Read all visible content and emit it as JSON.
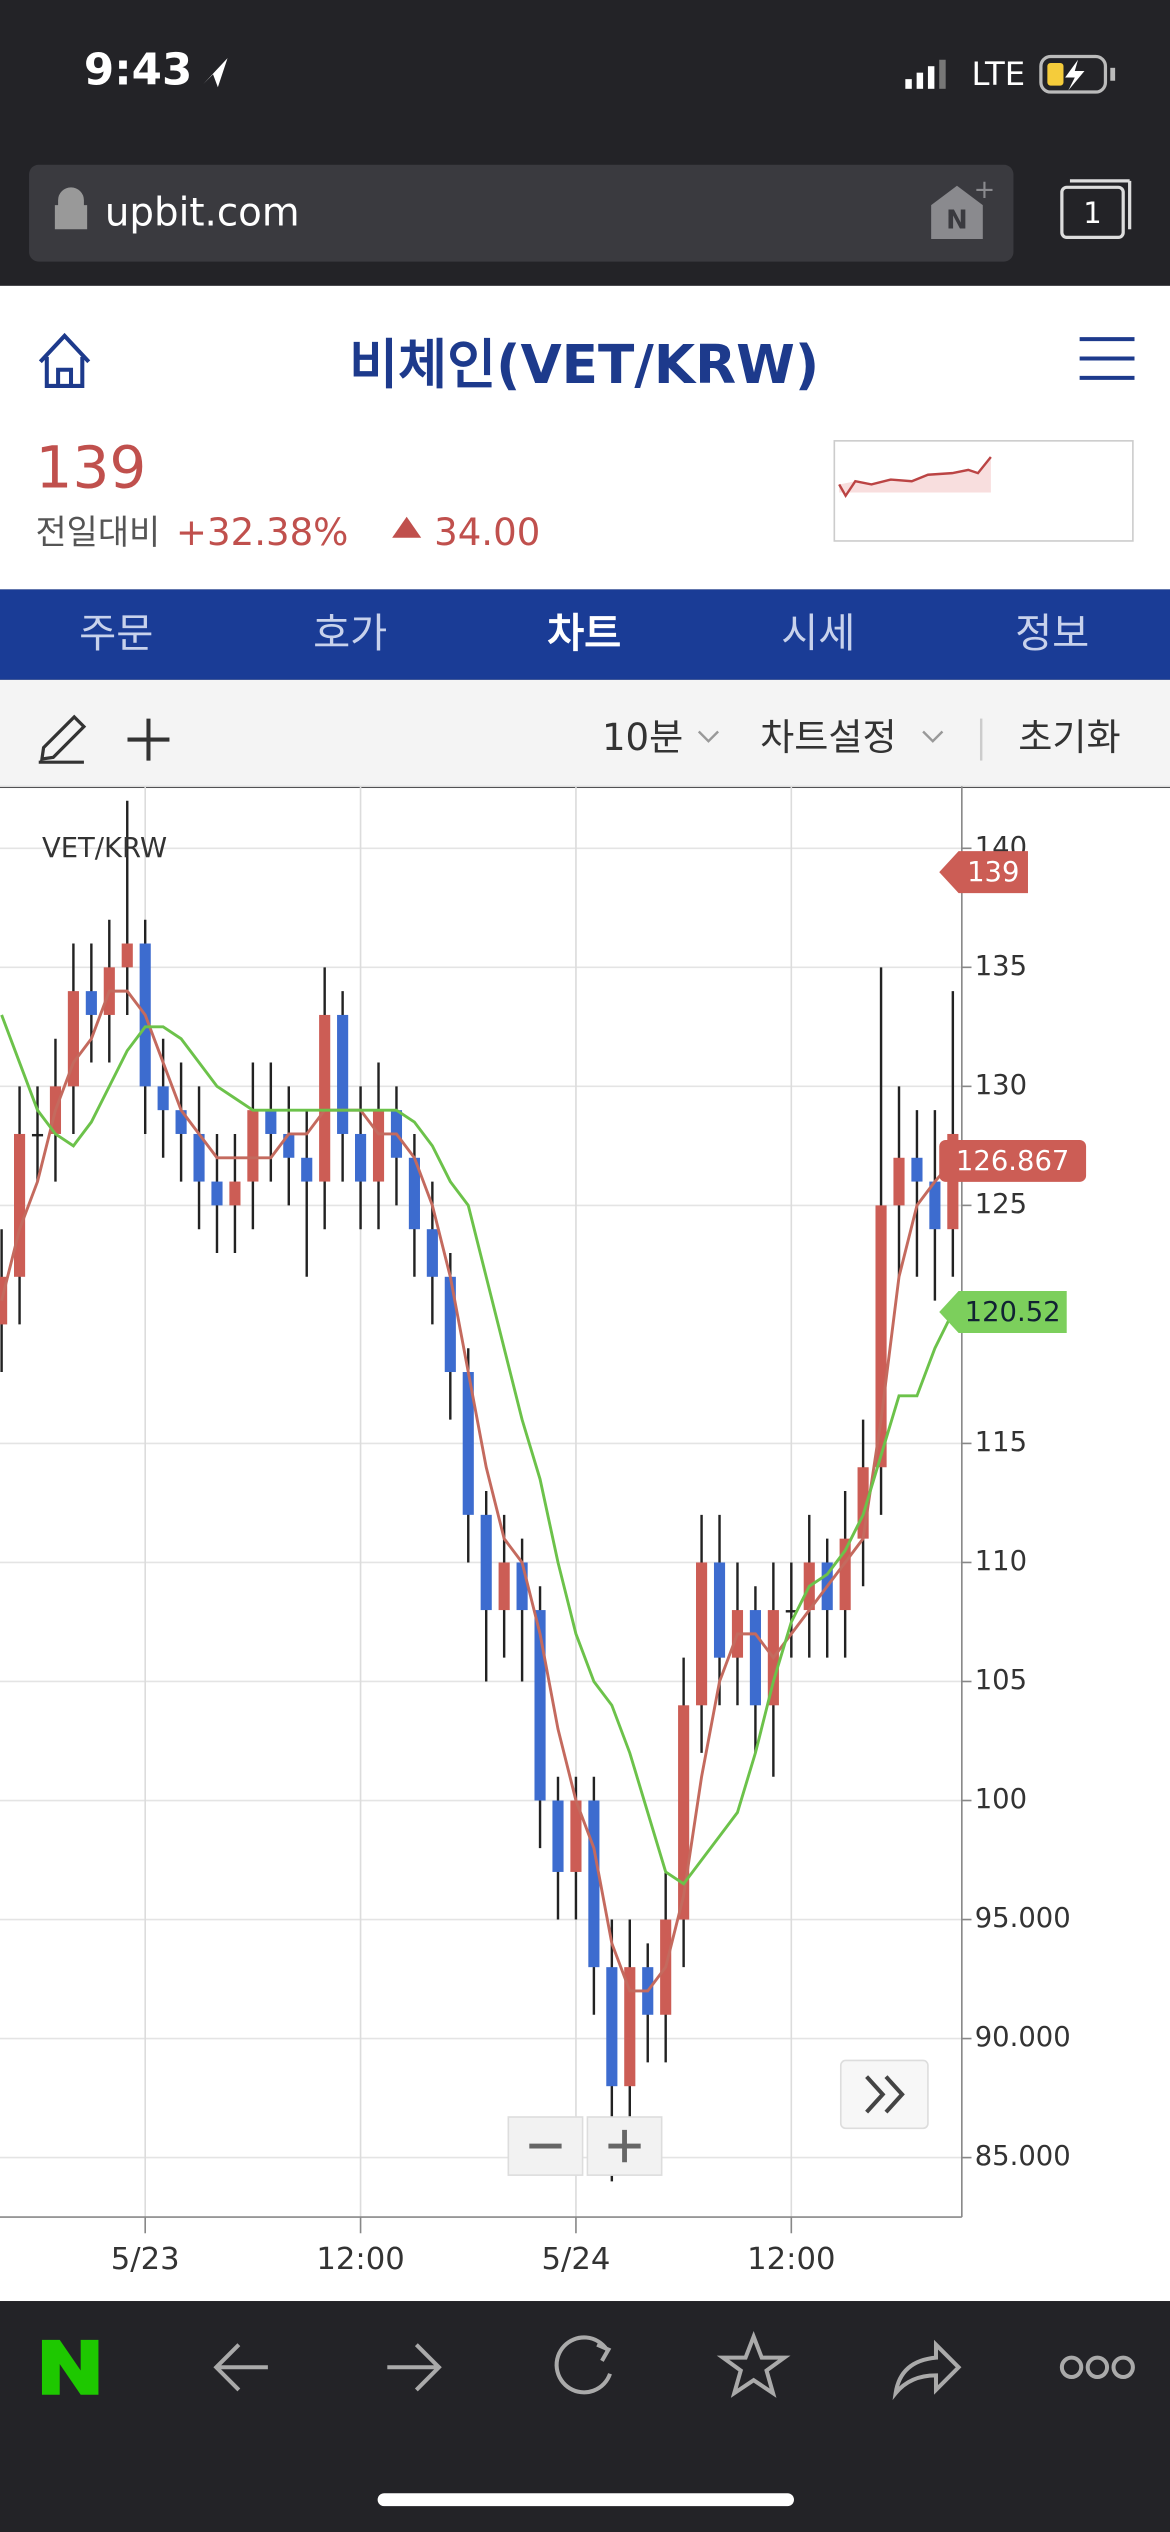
{
  "status_bar": {
    "time": "9:43",
    "network": "LTE"
  },
  "browser": {
    "url": "upbit.com",
    "tab_count": 1
  },
  "header": {
    "title": "비체인(VET/KRW)",
    "price": 139,
    "change_label": "전일대비",
    "change_rate": "+32.38%",
    "change_amount": "34.00"
  },
  "tabs": [
    "주문",
    "호가",
    "차트",
    "시세",
    "정보"
  ],
  "active_tab": 2,
  "toolbar": {
    "interval": "10분",
    "settings": "차트설정",
    "reset": "초기화"
  },
  "chart_data": {
    "type": "candlestick",
    "title": "VET/KRW",
    "x": [
      -8,
      -7,
      -6,
      -5,
      -4,
      -3,
      -2,
      -1,
      0,
      1,
      2,
      3,
      4,
      5,
      6,
      7,
      8,
      9,
      10,
      11,
      12,
      13,
      14,
      15,
      16,
      17,
      18,
      19,
      20,
      21,
      22,
      23,
      24,
      25,
      26,
      27,
      28,
      29,
      30,
      31,
      32,
      33,
      34,
      35,
      36,
      37,
      38,
      39,
      40,
      41,
      42,
      43,
      44,
      45
    ],
    "open": [
      120,
      122,
      128,
      128,
      130,
      134,
      133,
      135,
      136,
      130,
      129,
      128,
      126,
      125,
      126,
      129,
      128,
      127,
      126,
      133,
      128,
      126,
      129,
      127,
      124,
      122,
      118,
      112,
      108,
      110,
      108,
      100,
      97,
      100,
      93,
      88,
      93,
      91,
      95,
      104,
      110,
      106,
      108,
      104,
      108,
      108,
      110,
      108,
      111,
      114,
      125,
      127,
      126,
      124
    ],
    "high": [
      124,
      130,
      130,
      132,
      136,
      136,
      137,
      142,
      137,
      132,
      131,
      130,
      128,
      128,
      131,
      131,
      130,
      129,
      135,
      134,
      130,
      131,
      130,
      128,
      126,
      123,
      119,
      113,
      112,
      111,
      109,
      101,
      101,
      101,
      95,
      95,
      94,
      97,
      106,
      112,
      112,
      110,
      109,
      110,
      110,
      112,
      111,
      113,
      116,
      135,
      130,
      129,
      129,
      134
    ],
    "low": [
      118,
      120,
      126,
      126,
      128,
      131,
      131,
      133,
      128,
      127,
      126,
      124,
      123,
      123,
      124,
      126,
      125,
      122,
      124,
      126,
      124,
      124,
      125,
      122,
      120,
      116,
      110,
      105,
      106,
      105,
      98,
      95,
      95,
      91,
      84,
      86,
      89,
      89,
      93,
      102,
      104,
      104,
      102,
      101,
      106,
      106,
      106,
      106,
      109,
      112,
      122,
      122,
      121,
      122
    ],
    "close": [
      122,
      128,
      128,
      130,
      134,
      133,
      135,
      136,
      130,
      129,
      128,
      126,
      125,
      126,
      129,
      128,
      127,
      126,
      133,
      128,
      126,
      129,
      127,
      124,
      122,
      118,
      112,
      108,
      110,
      108,
      100,
      97,
      100,
      93,
      88,
      93,
      91,
      95,
      104,
      110,
      106,
      108,
      104,
      108,
      108,
      110,
      108,
      111,
      114,
      125,
      127,
      126,
      124,
      128
    ],
    "up_color": "#cc5d55",
    "down_color": "#3d6ccf",
    "series": [
      {
        "color": "#c46a5e",
        "values": [
          121,
          124,
          126,
          129,
          131,
          132,
          134,
          134,
          133,
          131,
          129,
          128,
          127,
          127,
          127,
          127,
          128,
          128,
          129,
          129,
          129,
          128,
          128,
          127,
          125,
          122,
          118,
          114,
          111,
          110,
          107,
          103,
          100,
          98,
          94,
          92,
          92,
          93,
          96,
          101,
          105,
          107,
          107,
          106,
          107,
          108,
          109,
          110,
          111,
          116,
          122,
          125,
          126,
          126.867
        ]
      },
      {
        "color": "#6cc24a",
        "values": [
          133,
          131,
          129,
          128,
          127.5,
          128.5,
          130,
          131.5,
          132.5,
          132.5,
          132,
          131,
          130,
          129.5,
          129,
          129,
          129,
          129,
          129,
          129,
          129,
          129,
          129,
          128.5,
          127.5,
          126,
          125,
          122,
          119,
          116,
          113.5,
          110,
          107,
          105,
          104,
          102,
          99.5,
          97,
          96.5,
          97.5,
          98.5,
          99.5,
          102,
          105,
          107.5,
          109,
          109.5,
          110.5,
          112,
          114.5,
          117,
          117,
          119,
          120.52
        ]
      }
    ],
    "xlim": [
      -8.09,
      45.5
    ],
    "ylim": [
      82.5,
      142.6
    ],
    "xticks": [
      {
        "value": 0,
        "label": "5/23"
      },
      {
        "value": 12,
        "label": "12:00"
      },
      {
        "value": 24,
        "label": "5/24"
      },
      {
        "value": 36,
        "label": "12:00"
      }
    ],
    "yticks": [
      140,
      135,
      130,
      125,
      115,
      110,
      105,
      100,
      {
        "value": 95,
        "label": "95.000"
      },
      {
        "value": 90,
        "label": "90.000"
      },
      {
        "value": 85,
        "label": "85.000"
      }
    ],
    "grid": true
  }
}
